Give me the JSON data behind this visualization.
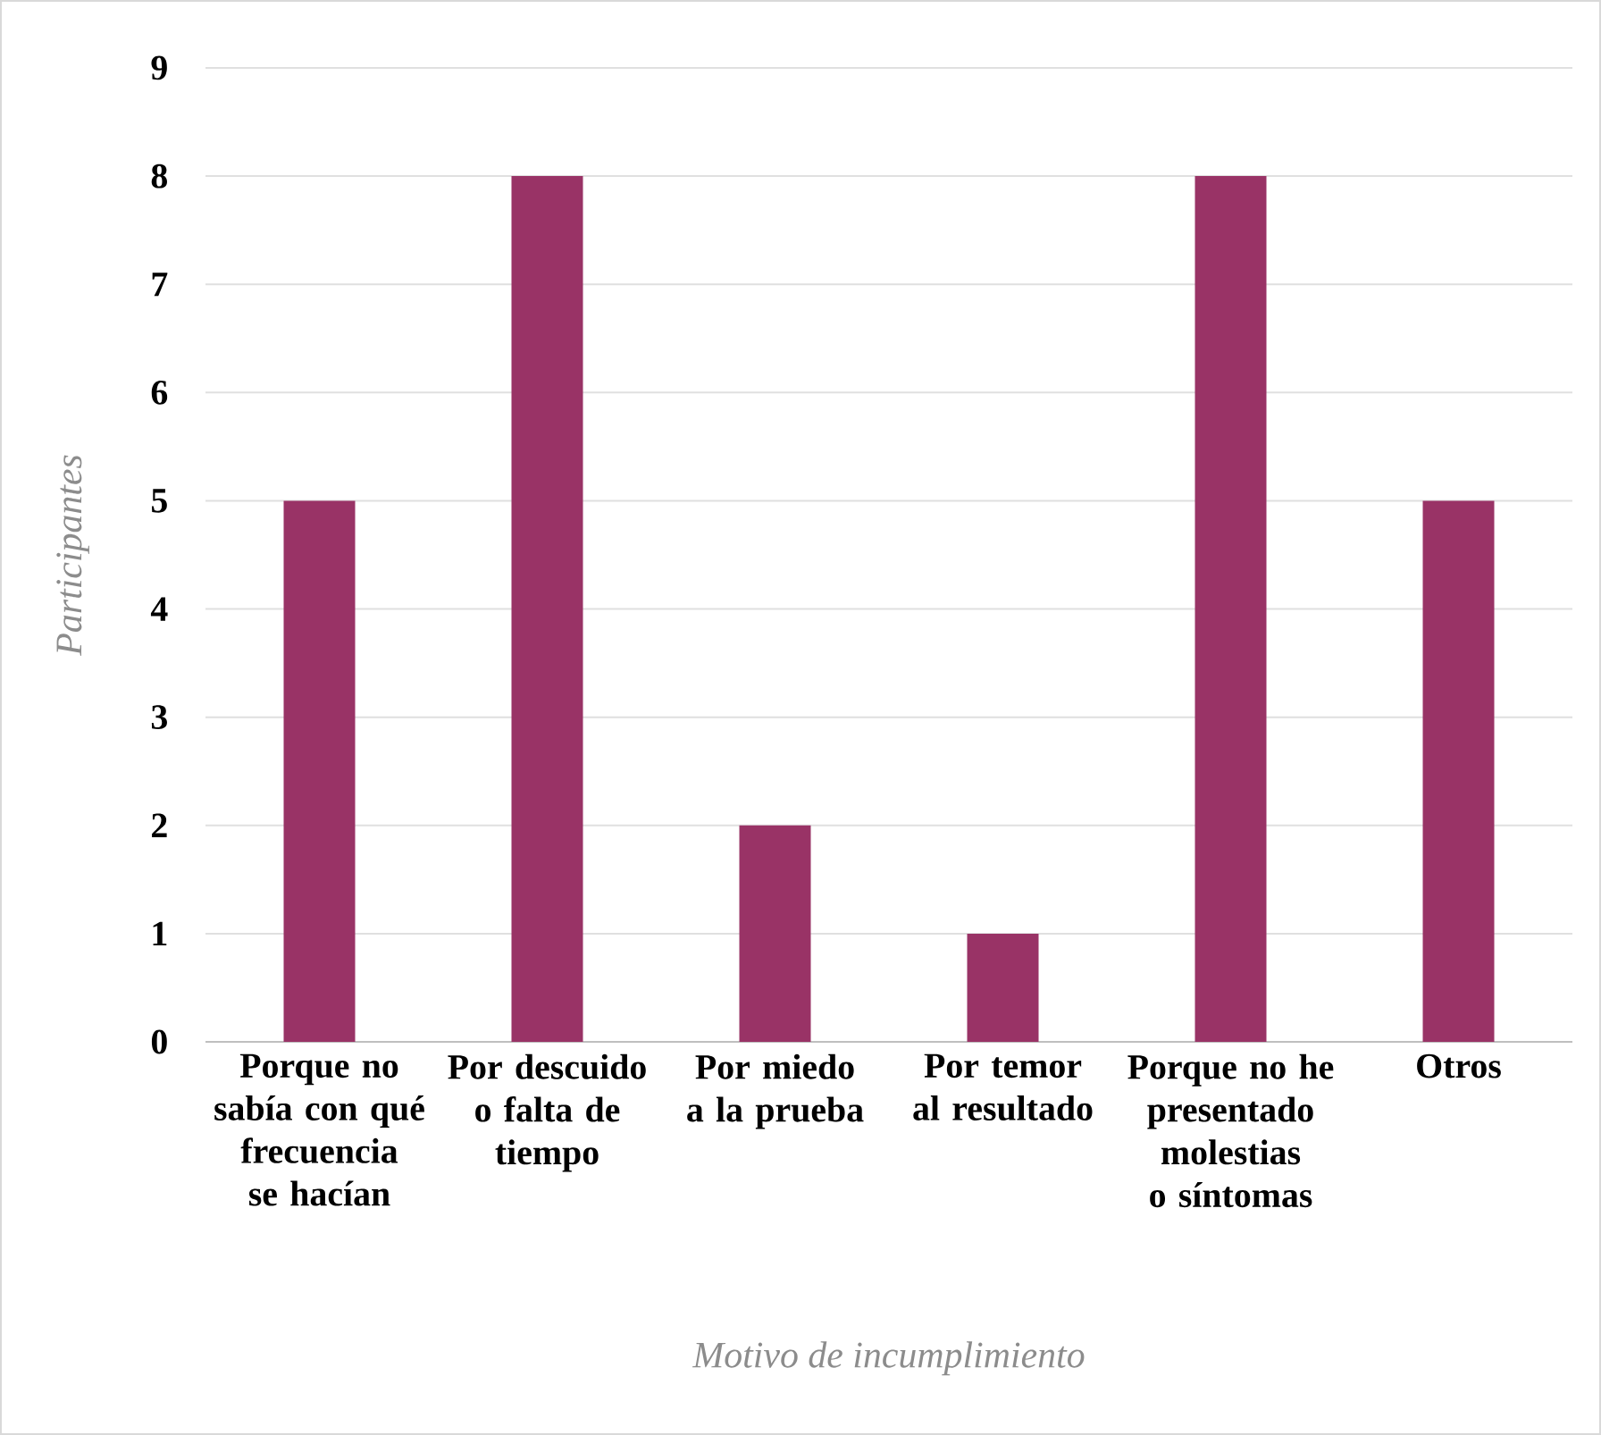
{
  "chart_data": {
    "type": "bar",
    "xlabel": "*Motivo de incumplimiento*",
    "ylabel": "*Participantes*",
    "categories": [
      "Porque no sabía con qué frecuencia se hacían",
      "Por descuido o falta de tiempo",
      "Por miedo a la prueba",
      "Por temor al resultado",
      "Porque no he presentado molestias o síntomas",
      "Otros"
    ],
    "values": [
      5,
      8,
      2,
      1,
      8,
      5
    ],
    "color": "#993366",
    "ylim": [
      0,
      9
    ],
    "yticks": [
      0,
      1,
      2,
      3,
      4,
      5,
      6,
      7,
      8,
      9
    ],
    "grid": "y"
  }
}
